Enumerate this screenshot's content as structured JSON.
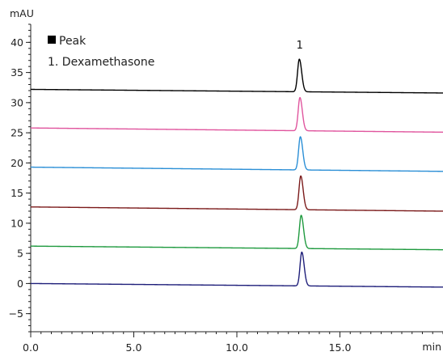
{
  "chart_data": {
    "type": "line",
    "x_unit": "min",
    "y_unit": "mAU",
    "xlim": [
      0,
      20
    ],
    "ylim": [
      -8,
      43
    ],
    "x_ticks": [
      0,
      5,
      10,
      15
    ],
    "x_tick_labels": [
      "0.0",
      "5.0",
      "10.0",
      "15.0"
    ],
    "x_minor_step": 0.5,
    "y_ticks": [
      -5,
      0,
      5,
      10,
      15,
      20,
      25,
      30,
      35,
      40
    ],
    "y_tick_labels": [
      "−5",
      "0",
      "5",
      "10",
      "15",
      "20",
      "25",
      "30",
      "35",
      "40"
    ],
    "y_minor_step": 1,
    "grid": false,
    "legend": {
      "marker_label": "Peak",
      "entries": [
        "1. Dexamethasone"
      ],
      "placement": "top-left"
    },
    "peak_labels": [
      {
        "text": "1",
        "x": 13.05,
        "y": 39
      }
    ],
    "series": [
      {
        "color": "#1f1f7a",
        "baseline_start": 0.0,
        "baseline_end": -0.6,
        "peak_x": 13.15,
        "peak_height": 5.6,
        "peak_width": 0.085
      },
      {
        "color": "#1f9a3f",
        "baseline_start": 6.2,
        "baseline_end": 5.6,
        "peak_x": 13.12,
        "peak_height": 5.5,
        "peak_width": 0.085
      },
      {
        "color": "#7b1a1a",
        "baseline_start": 12.7,
        "baseline_end": 12.0,
        "peak_x": 13.1,
        "peak_height": 5.6,
        "peak_width": 0.085
      },
      {
        "color": "#2b8fd6",
        "baseline_start": 19.3,
        "baseline_end": 18.6,
        "peak_x": 13.08,
        "peak_height": 5.5,
        "peak_width": 0.085
      },
      {
        "color": "#e0559e",
        "baseline_start": 25.8,
        "baseline_end": 25.1,
        "peak_x": 13.06,
        "peak_height": 5.5,
        "peak_width": 0.085
      },
      {
        "color": "#000000",
        "baseline_start": 32.2,
        "baseline_end": 31.6,
        "peak_x": 13.03,
        "peak_height": 5.4,
        "peak_width": 0.085
      }
    ]
  }
}
